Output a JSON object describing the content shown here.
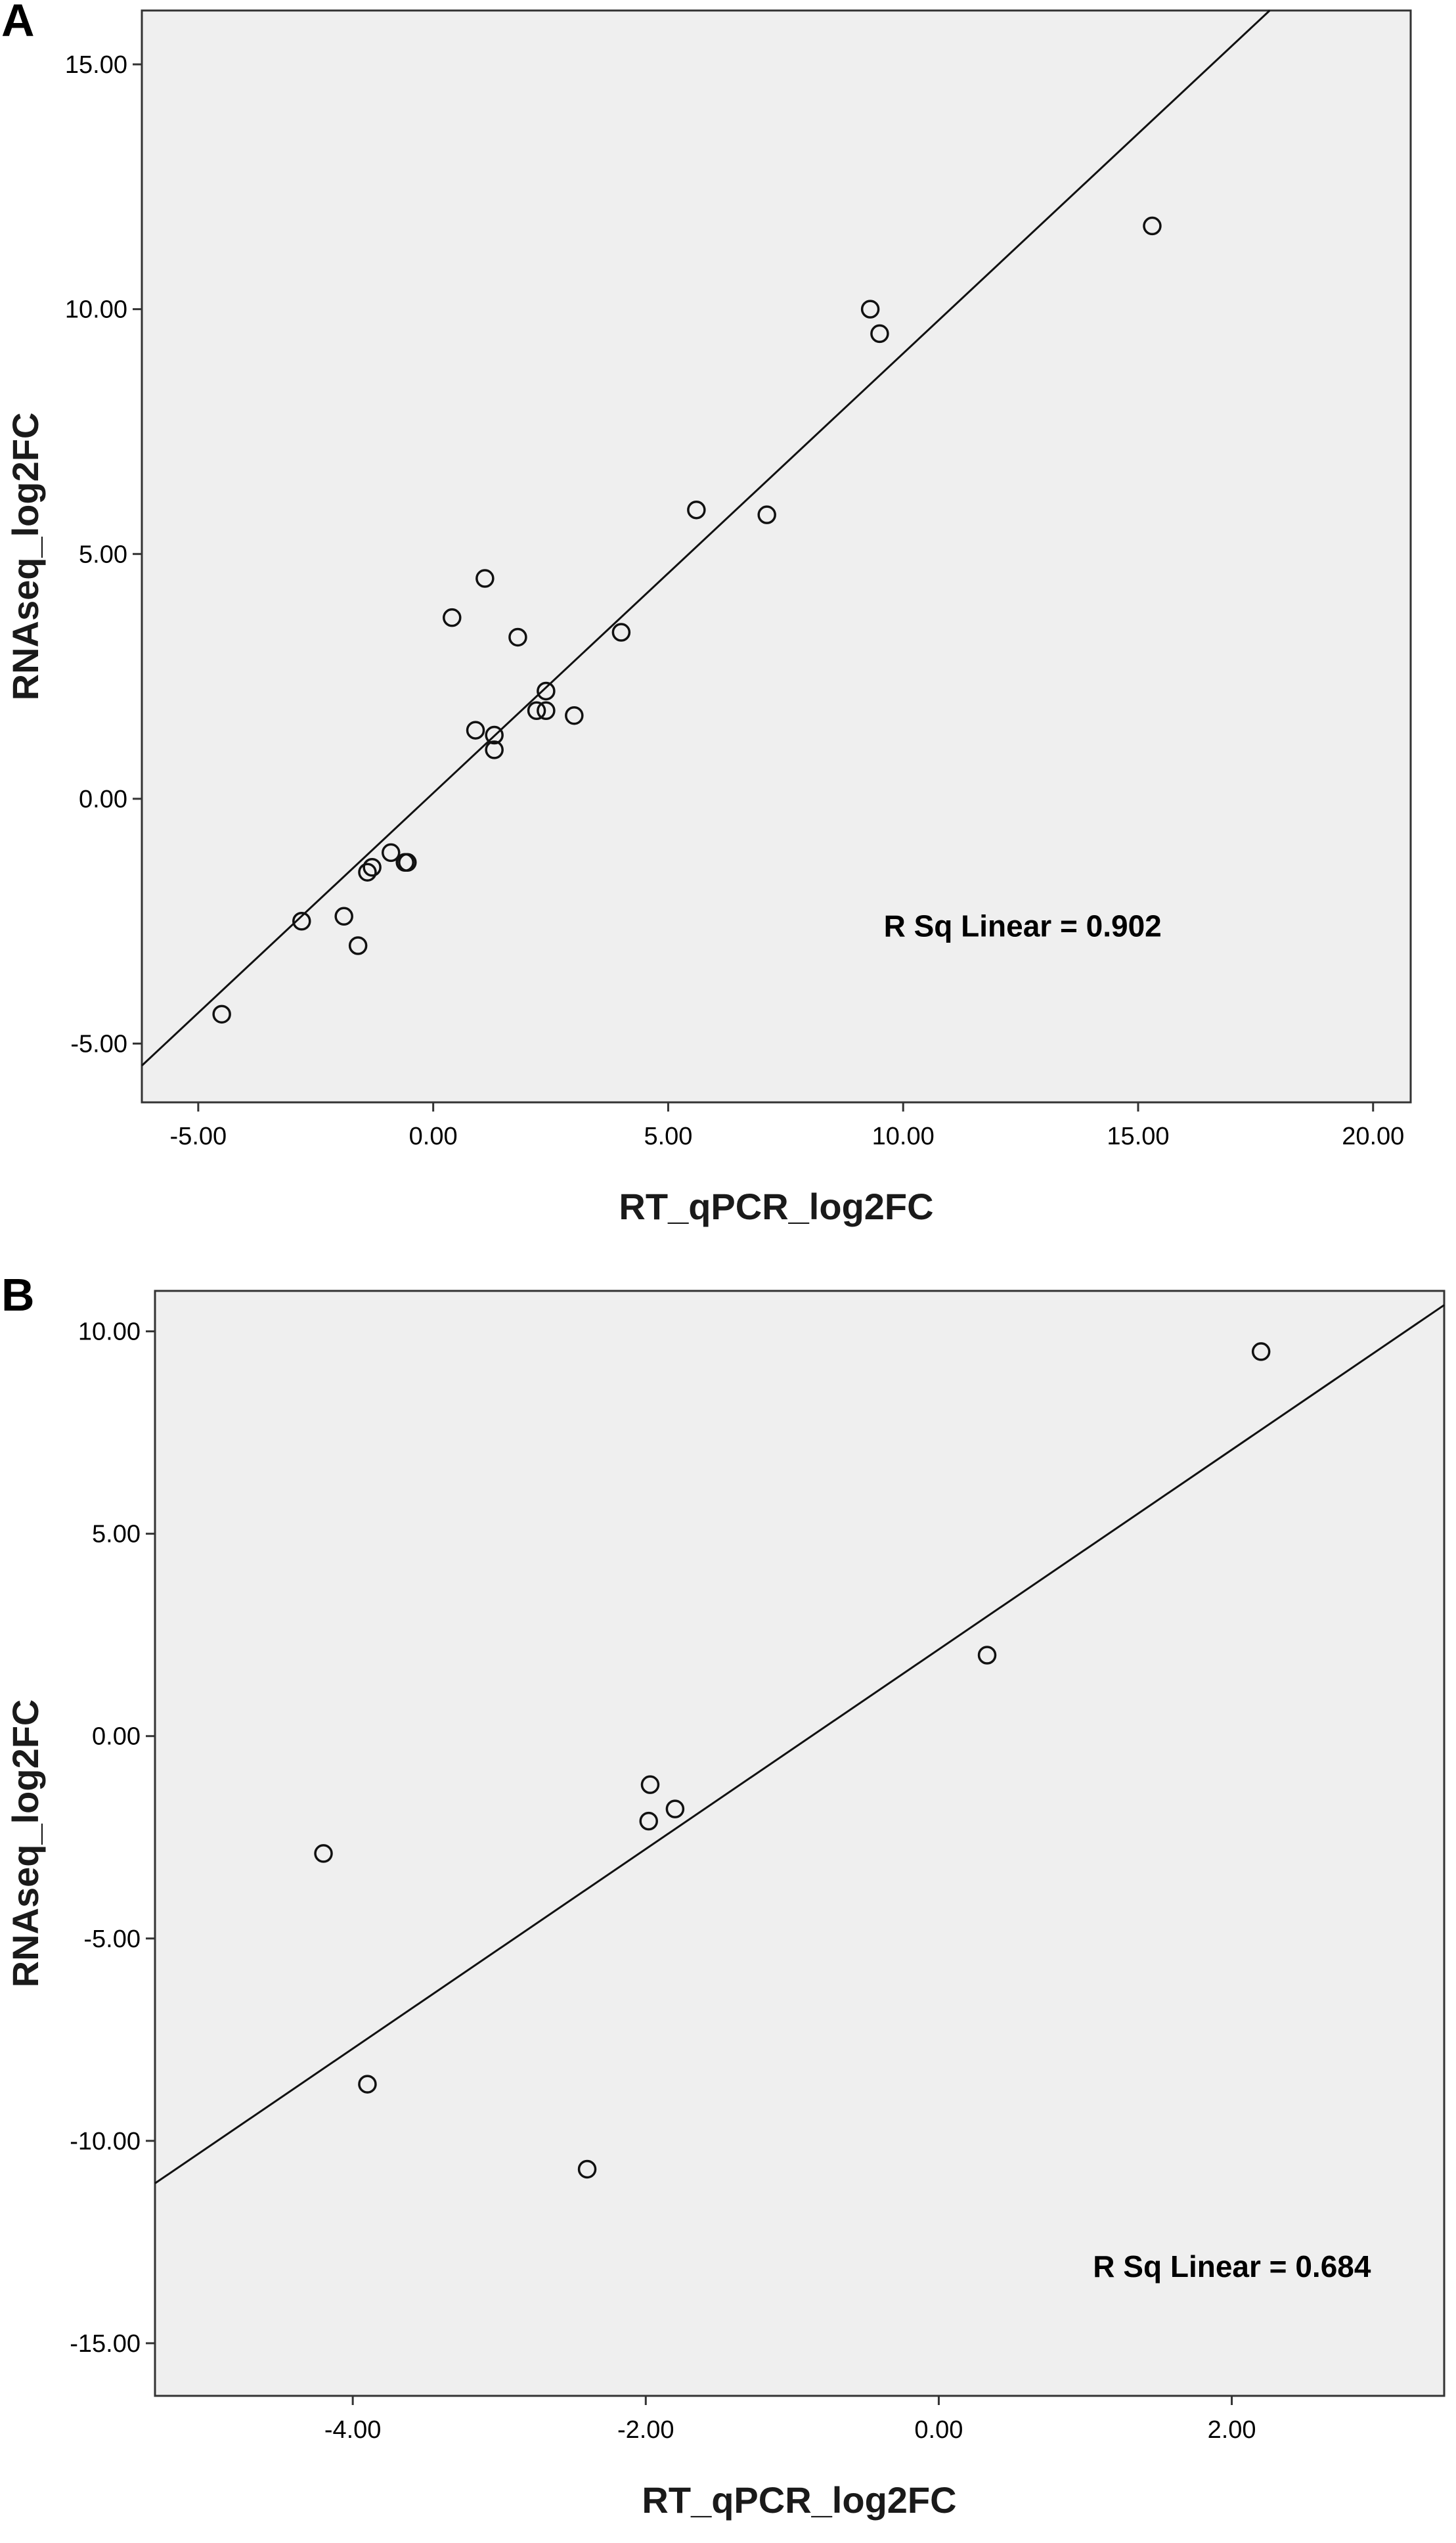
{
  "chart_data": [
    {
      "type": "scatter",
      "panel_label": "A",
      "xlabel": "RT_qPCR_log2FC",
      "ylabel": "RNAseq_log2FC",
      "xlim": [
        -6.2,
        20.8
      ],
      "ylim": [
        -6.2,
        16.1
      ],
      "xticks": [
        -5,
        0,
        5,
        10,
        15,
        20
      ],
      "xtick_labels": [
        "-5.00",
        "0.00",
        "5.00",
        "10.00",
        "15.00",
        "20.00"
      ],
      "yticks": [
        -5,
        0,
        5,
        10,
        15
      ],
      "ytick_labels": [
        "-5.00",
        "0.00",
        "5.00",
        "10.00",
        "15.00"
      ],
      "points": [
        [
          -4.5,
          -4.4
        ],
        [
          -2.8,
          -2.5
        ],
        [
          -1.9,
          -2.4
        ],
        [
          -1.6,
          -3.0
        ],
        [
          -1.4,
          -1.5
        ],
        [
          -1.3,
          -1.4
        ],
        [
          -0.9,
          -1.1
        ],
        [
          -0.6,
          -1.3
        ],
        [
          -0.55,
          -1.3
        ],
        [
          0.4,
          3.7
        ],
        [
          0.9,
          1.4
        ],
        [
          1.1,
          4.5
        ],
        [
          1.3,
          1.3
        ],
        [
          1.3,
          1.0
        ],
        [
          1.8,
          3.3
        ],
        [
          2.2,
          1.8
        ],
        [
          2.4,
          2.2
        ],
        [
          2.4,
          1.8
        ],
        [
          3.0,
          1.7
        ],
        [
          4.0,
          3.4
        ],
        [
          5.6,
          5.9
        ],
        [
          7.1,
          5.8
        ],
        [
          9.3,
          10.0
        ],
        [
          9.5,
          9.5
        ],
        [
          15.3,
          11.7
        ]
      ],
      "fit_line": [
        [
          -6.2,
          -5.45
        ],
        [
          17.8,
          16.1
        ]
      ],
      "annotation": "R Sq Linear = 0.902",
      "annotation_pos": [
        15.5,
        -2.6
      ],
      "grid": false
    },
    {
      "type": "scatter",
      "panel_label": "B",
      "xlabel": "RT_qPCR_log2FC",
      "ylabel": "RNAseq_log2FC",
      "xlim": [
        -5.35,
        3.45
      ],
      "ylim": [
        -16.3,
        11.0
      ],
      "xticks": [
        -4,
        -2,
        0,
        2
      ],
      "xtick_labels": [
        "-4.00",
        "-2.00",
        "0.00",
        "2.00"
      ],
      "yticks": [
        -15,
        -10,
        -5,
        0,
        5,
        10
      ],
      "ytick_labels": [
        "-15.00",
        "-10.00",
        "-5.00",
        "0.00",
        "5.00",
        "10.00"
      ],
      "points": [
        [
          -4.2,
          -2.9
        ],
        [
          -3.9,
          -8.6
        ],
        [
          -2.4,
          -10.7
        ],
        [
          -1.97,
          -1.2
        ],
        [
          -1.98,
          -2.1
        ],
        [
          -1.8,
          -1.8
        ],
        [
          0.33,
          2.0
        ],
        [
          2.2,
          9.5
        ]
      ],
      "fit_line": [
        [
          -5.35,
          -11.05
        ],
        [
          3.45,
          10.65
        ]
      ],
      "annotation": "R Sq Linear = 0.684",
      "annotation_pos": [
        2.95,
        -13.1
      ],
      "grid": false
    }
  ]
}
